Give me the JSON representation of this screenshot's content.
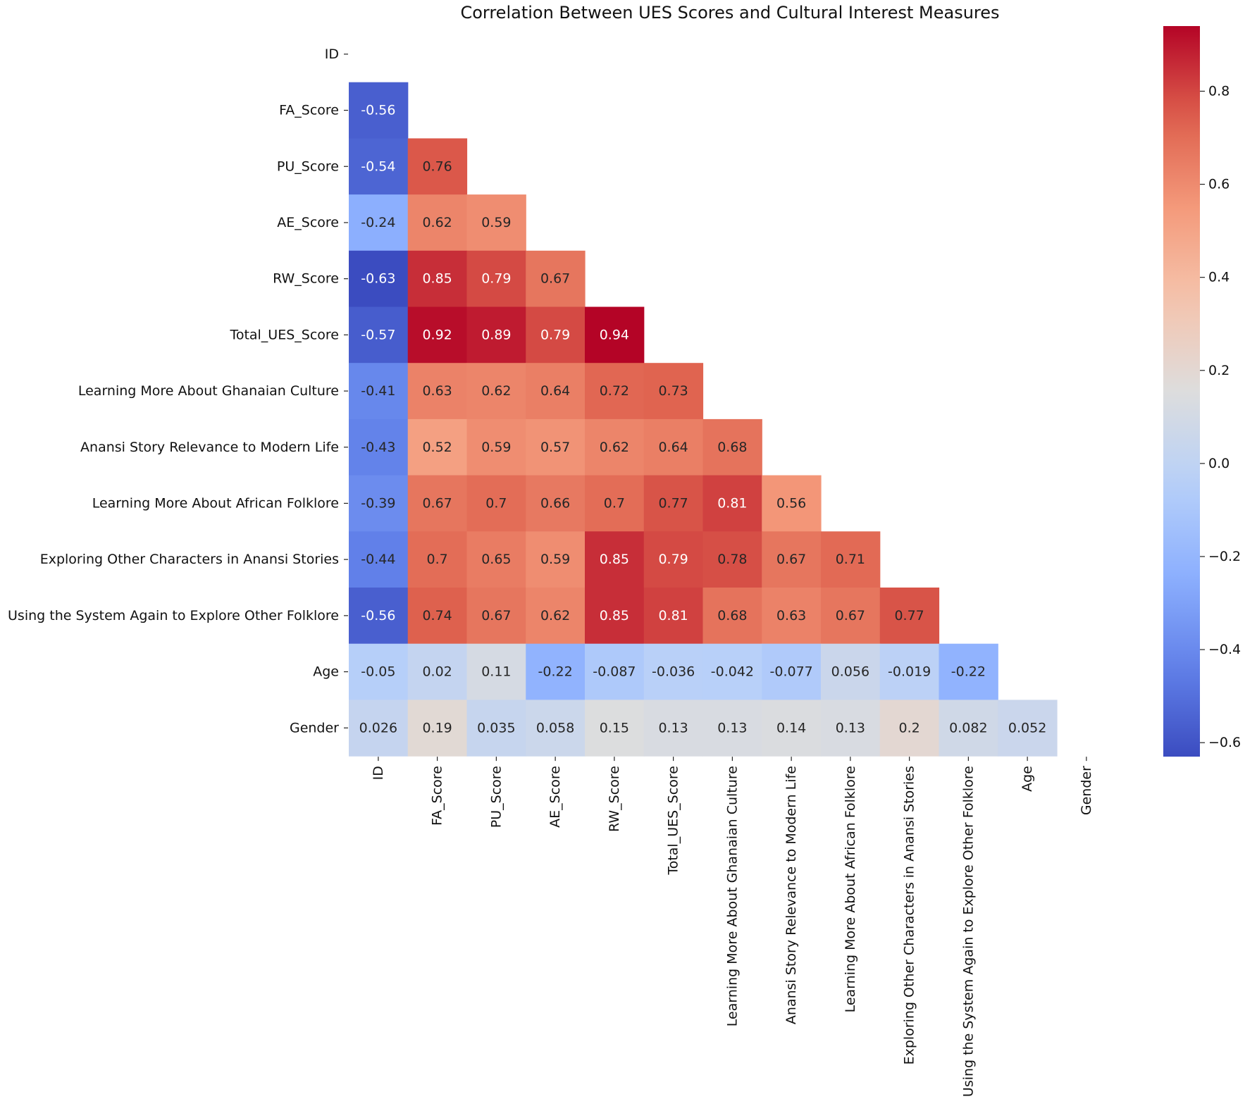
{
  "chart_data": {
    "type": "heatmap",
    "title": "Correlation Between UES Scores and Cultural Interest Measures",
    "xlabel": "",
    "ylabel": "",
    "mask": "upper-triangle-including-diagonal",
    "colormap": "coolwarm",
    "labels": [
      "ID",
      "FA_Score",
      "PU_Score",
      "AE_Score",
      "RW_Score",
      "Total_UES_Score",
      "Learning More About Ghanaian Culture",
      "Anansi Story Relevance to Modern Life",
      "Learning More About African Folklore",
      "Exploring Other Characters in Anansi Stories",
      "Using the System Again to Explore Other Folklore",
      "Age",
      "Gender"
    ],
    "values": [
      [],
      [
        -0.56
      ],
      [
        -0.54,
        0.76
      ],
      [
        -0.24,
        0.62,
        0.59
      ],
      [
        -0.63,
        0.85,
        0.79,
        0.67
      ],
      [
        -0.57,
        0.92,
        0.89,
        0.79,
        0.94
      ],
      [
        -0.41,
        0.63,
        0.62,
        0.64,
        0.72,
        0.73
      ],
      [
        -0.43,
        0.52,
        0.59,
        0.57,
        0.62,
        0.64,
        0.68
      ],
      [
        -0.39,
        0.67,
        0.7,
        0.66,
        0.7,
        0.77,
        0.81,
        0.56
      ],
      [
        -0.44,
        0.7,
        0.65,
        0.59,
        0.85,
        0.79,
        0.78,
        0.67,
        0.71
      ],
      [
        -0.56,
        0.74,
        0.67,
        0.62,
        0.85,
        0.81,
        0.68,
        0.63,
        0.67,
        0.77
      ],
      [
        -0.05,
        0.02,
        0.11,
        -0.22,
        -0.087,
        -0.036,
        -0.042,
        -0.077,
        0.056,
        -0.019,
        -0.22
      ],
      [
        0.026,
        0.19,
        0.035,
        0.058,
        0.15,
        0.13,
        0.13,
        0.14,
        0.13,
        0.2,
        0.082,
        0.052
      ]
    ],
    "colorbar": {
      "range": [
        -0.63,
        0.94
      ],
      "ticks": [
        -0.6,
        -0.4,
        -0.2,
        0.0,
        0.2,
        0.4,
        0.6,
        0.8
      ],
      "tick_labels": [
        "−0.6",
        "−0.4",
        "−0.2",
        "0.0",
        "0.2",
        "0.4",
        "0.6",
        "0.8"
      ]
    }
  }
}
